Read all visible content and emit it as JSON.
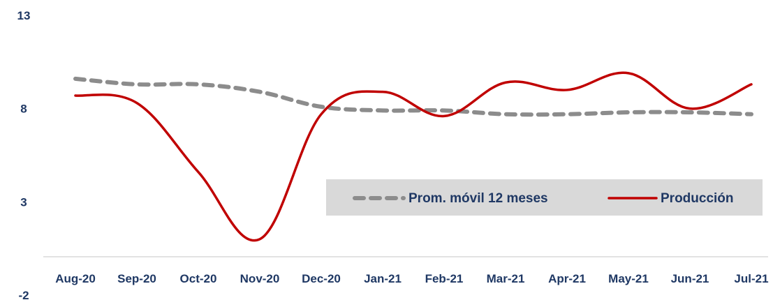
{
  "chart_data": {
    "type": "line",
    "categories": [
      "Aug-20",
      "Sep-20",
      "Oct-20",
      "Nov-20",
      "Dec-20",
      "Jan-21",
      "Feb-21",
      "Mar-21",
      "Apr-21",
      "May-21",
      "Jun-21",
      "Jul-21"
    ],
    "ylim": [
      -2,
      13
    ],
    "yticks": [
      13,
      8,
      3,
      -2
    ],
    "grid": false,
    "legend_position": "center-right",
    "series": [
      {
        "name": "Prom. móvil 12 meses",
        "values": [
          9.6,
          9.3,
          9.3,
          8.9,
          8.1,
          7.9,
          7.9,
          7.7,
          7.7,
          7.8,
          7.8,
          7.7
        ],
        "color": "#8c8c8c",
        "style": "dashed"
      },
      {
        "name": "Producción",
        "values": [
          8.7,
          8.3,
          4.6,
          1.0,
          7.7,
          8.9,
          7.6,
          9.4,
          9.0,
          9.9,
          8.0,
          9.3
        ],
        "color": "#c00000",
        "style": "solid"
      }
    ]
  },
  "colors": {
    "axis": "#d9d9d9",
    "legend_bg": "#d9d9d9",
    "label": "#1f3864"
  }
}
